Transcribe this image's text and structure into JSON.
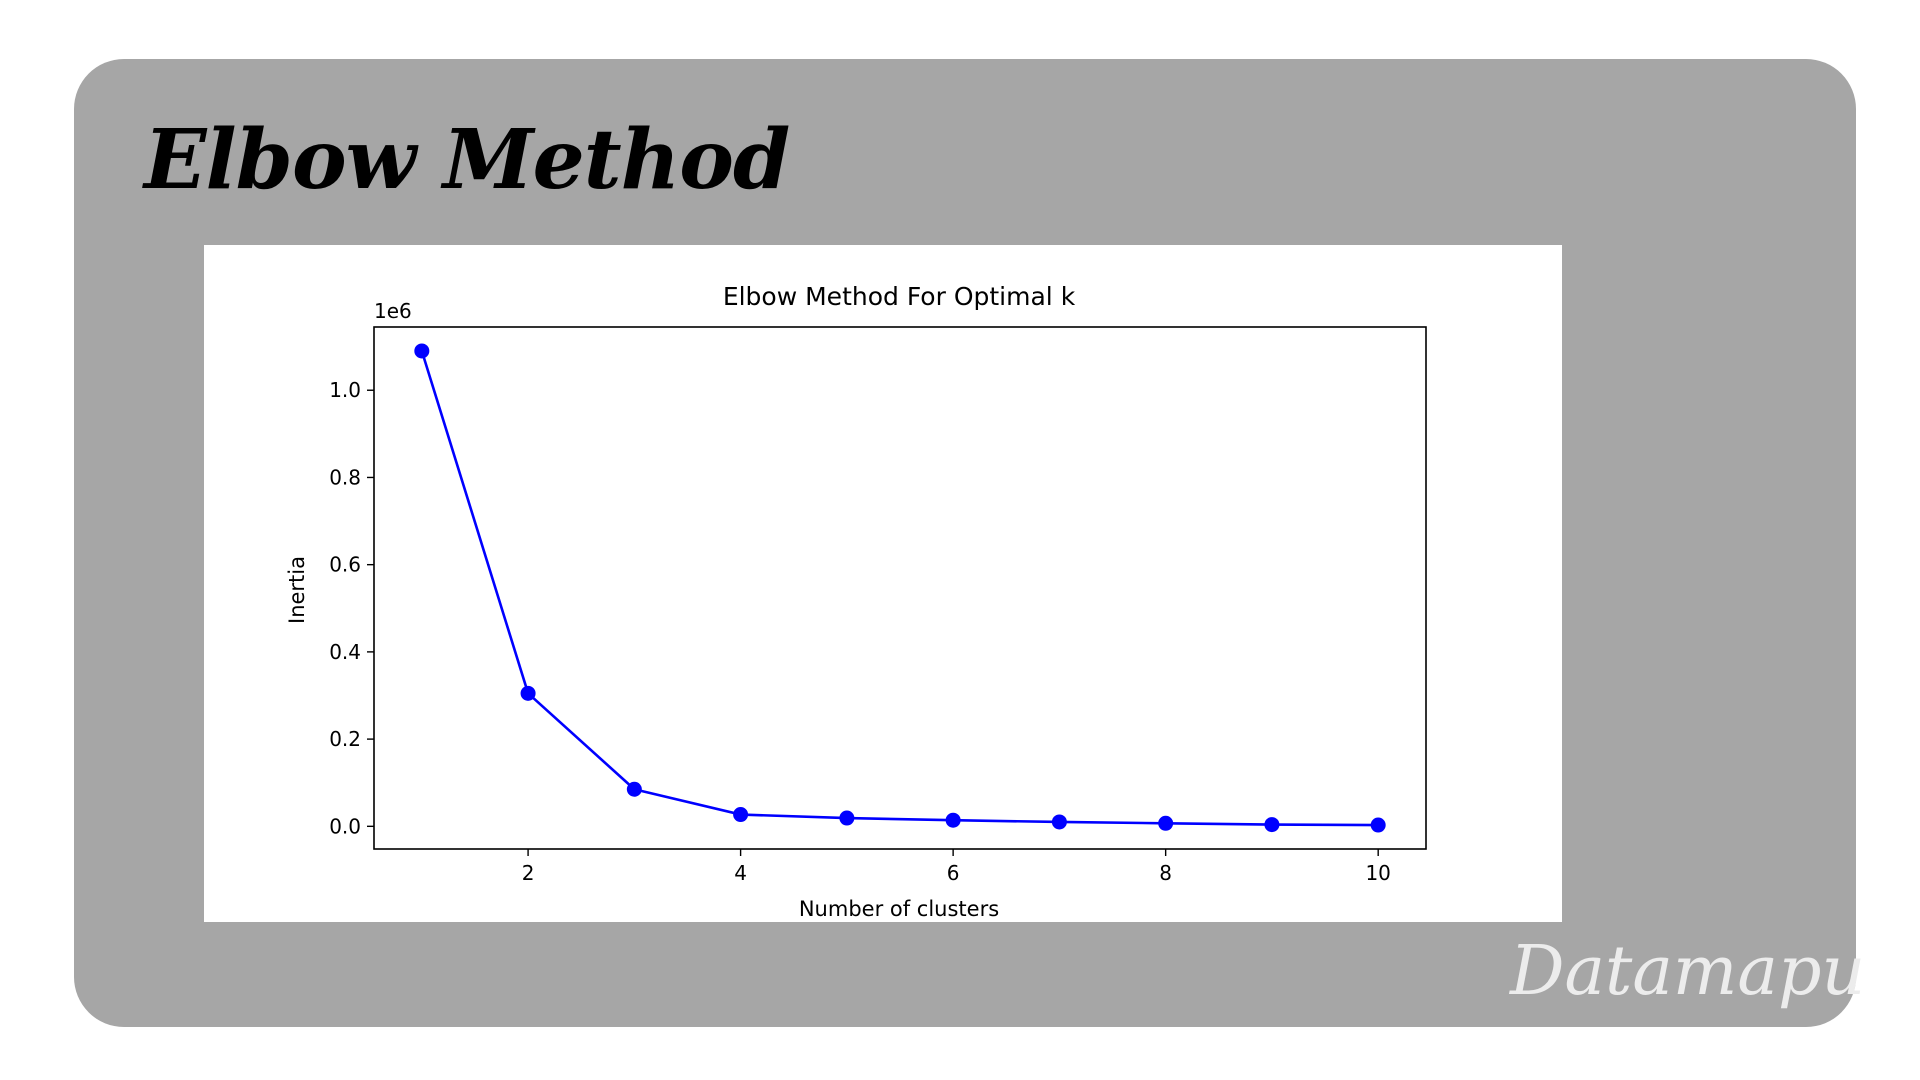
{
  "slide": {
    "title": "Elbow Method",
    "watermark": "Datamapu",
    "card_color": "#a6a6a6"
  },
  "chart_data": {
    "type": "line",
    "title": "Elbow Method For Optimal k",
    "xlabel": "Number of clusters",
    "ylabel": "Inertia",
    "y_offset_label": "1e6",
    "x": [
      1,
      2,
      3,
      4,
      5,
      6,
      7,
      8,
      9,
      10
    ],
    "series": [
      {
        "values": [
          1.09,
          0.305,
          0.085,
          0.027,
          0.019,
          0.014,
          0.01,
          0.007,
          0.004,
          0.003
        ]
      }
    ],
    "xlim": [
      0.55,
      10.45
    ],
    "ylim": [
      -0.052,
      1.145
    ],
    "x_ticks": [
      2,
      4,
      6,
      8,
      10
    ],
    "x_tick_labels": [
      "2",
      "4",
      "6",
      "8",
      "10"
    ],
    "y_ticks": [
      0.0,
      0.2,
      0.4,
      0.6,
      0.8,
      1.0
    ],
    "y_tick_labels": [
      "0.0",
      "0.2",
      "0.4",
      "0.6",
      "0.8",
      "1.0"
    ],
    "marker": "circle",
    "line_color": "#0000ff",
    "grid": false,
    "legend": "none"
  }
}
